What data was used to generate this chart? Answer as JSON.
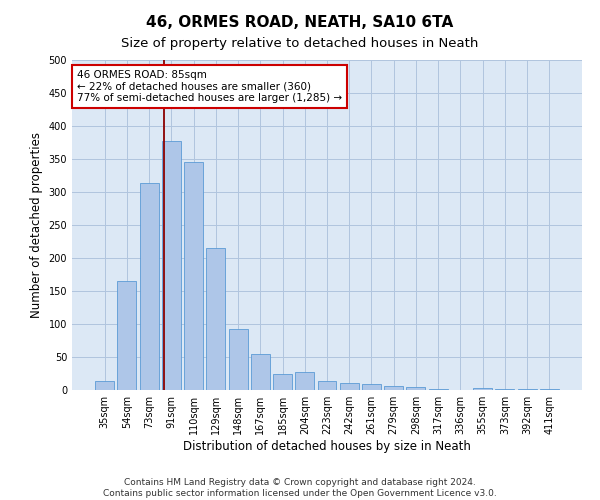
{
  "title": "46, ORMES ROAD, NEATH, SA10 6TA",
  "subtitle": "Size of property relative to detached houses in Neath",
  "xlabel": "Distribution of detached houses by size in Neath",
  "ylabel": "Number of detached properties",
  "categories": [
    "35sqm",
    "54sqm",
    "73sqm",
    "91sqm",
    "110sqm",
    "129sqm",
    "148sqm",
    "167sqm",
    "185sqm",
    "204sqm",
    "223sqm",
    "242sqm",
    "261sqm",
    "279sqm",
    "298sqm",
    "317sqm",
    "336sqm",
    "355sqm",
    "373sqm",
    "392sqm",
    "411sqm"
  ],
  "values": [
    13,
    165,
    313,
    378,
    345,
    215,
    93,
    55,
    25,
    28,
    13,
    10,
    9,
    6,
    4,
    2,
    0,
    3,
    1,
    2,
    1
  ],
  "bar_color": "#aec6e8",
  "bar_edge_color": "#5b9bd5",
  "vline_color": "#8b0000",
  "box_edge_color": "#cc0000",
  "annotation_box_text": "46 ORMES ROAD: 85sqm\n← 22% of detached houses are smaller (360)\n77% of semi-detached houses are larger (1,285) →",
  "footer_line1": "Contains HM Land Registry data © Crown copyright and database right 2024.",
  "footer_line2": "Contains public sector information licensed under the Open Government Licence v3.0.",
  "ylim": [
    0,
    500
  ],
  "yticks": [
    0,
    50,
    100,
    150,
    200,
    250,
    300,
    350,
    400,
    450,
    500
  ],
  "bg_color": "#ffffff",
  "plot_bg_color": "#dce8f5",
  "grid_color": "#b0c4de",
  "title_fontsize": 11,
  "subtitle_fontsize": 9.5,
  "axis_label_fontsize": 8.5,
  "tick_fontsize": 7,
  "footer_fontsize": 6.5,
  "annot_fontsize": 7.5,
  "vline_x": 2.67
}
